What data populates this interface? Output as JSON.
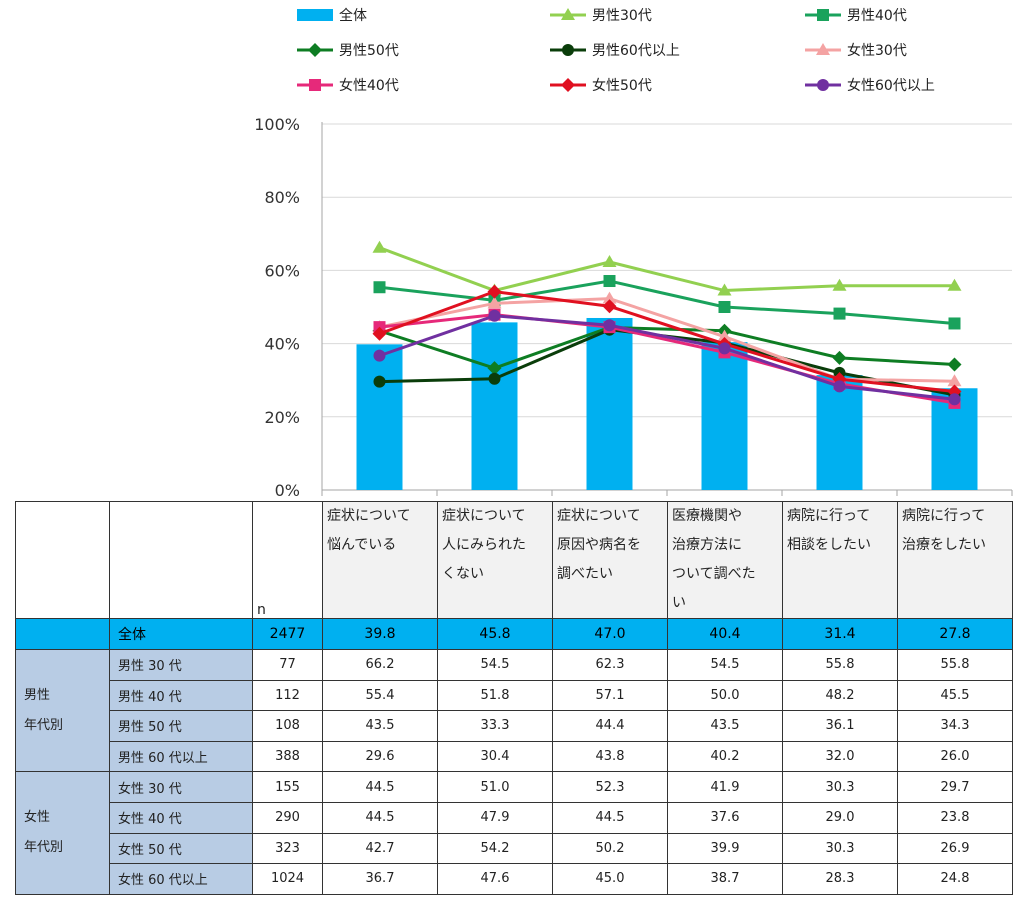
{
  "chart_data": {
    "type": "bar+line",
    "y_ticks": [
      "0%",
      "20%",
      "40%",
      "60%",
      "80%",
      "100%"
    ],
    "ylim": [
      0,
      100
    ],
    "categories": [
      "症状について悩んでいる",
      "症状について人にみられたくない",
      "症状について原因や病名を調べたい",
      "医療機関や治療方法について調べたい",
      "病院に行って相談をしたい",
      "病院に行って治療をしたい"
    ],
    "bar_series": {
      "name": "全体",
      "color": "#00b0f0",
      "values": [
        39.8,
        45.8,
        47.0,
        40.4,
        31.4,
        27.8
      ]
    },
    "line_series": [
      {
        "name": "男性30代",
        "color": "#92d050",
        "marker": "triangle",
        "values": [
          66.2,
          54.5,
          62.3,
          54.5,
          55.8,
          55.8
        ]
      },
      {
        "name": "男性40代",
        "color": "#1aa25c",
        "marker": "square",
        "values": [
          55.4,
          51.8,
          57.1,
          50.0,
          48.2,
          45.5
        ]
      },
      {
        "name": "男性50代",
        "color": "#0e7d23",
        "marker": "diamond",
        "values": [
          43.5,
          33.3,
          44.4,
          43.5,
          36.1,
          34.3
        ]
      },
      {
        "name": "男性60代以上",
        "color": "#0a3d0a",
        "marker": "circle",
        "values": [
          29.6,
          30.4,
          43.8,
          40.2,
          32.0,
          26.0
        ]
      },
      {
        "name": "女性30代",
        "color": "#f4a3a3",
        "marker": "triangle",
        "values": [
          44.5,
          51.0,
          52.3,
          41.9,
          30.3,
          29.7
        ]
      },
      {
        "name": "女性40代",
        "color": "#e6297a",
        "marker": "square",
        "values": [
          44.5,
          47.9,
          44.5,
          37.6,
          29.0,
          23.8
        ]
      },
      {
        "name": "女性50代",
        "color": "#e01020",
        "marker": "diamond",
        "values": [
          42.7,
          54.2,
          50.2,
          39.9,
          30.3,
          26.9
        ]
      },
      {
        "name": "女性60代以上",
        "color": "#7030a0",
        "marker": "circle",
        "values": [
          36.7,
          47.6,
          45.0,
          38.7,
          28.3,
          24.8
        ]
      }
    ]
  },
  "table": {
    "n_header": "n",
    "questions": [
      [
        "症状について",
        "悩んでいる"
      ],
      [
        "症状について",
        "人にみられた",
        "くない"
      ],
      [
        "症状について",
        "原因や病名を",
        "調べたい"
      ],
      [
        "医療機関や",
        "治療方法に",
        "ついて調べた",
        "い"
      ],
      [
        "病院に行って",
        "相談をしたい"
      ],
      [
        "病院に行って",
        "治療をしたい"
      ]
    ],
    "total": {
      "label": "全体",
      "n": "2477",
      "values": [
        "39.8",
        "45.8",
        "47.0",
        "40.4",
        "31.4",
        "27.8"
      ]
    },
    "groups": [
      {
        "label_lines": [
          "男性",
          "年代別"
        ],
        "rows": [
          {
            "label": "男性 30 代",
            "n": "77",
            "values": [
              "66.2",
              "54.5",
              "62.3",
              "54.5",
              "55.8",
              "55.8"
            ]
          },
          {
            "label": "男性 40 代",
            "n": "112",
            "values": [
              "55.4",
              "51.8",
              "57.1",
              "50.0",
              "48.2",
              "45.5"
            ]
          },
          {
            "label": "男性 50 代",
            "n": "108",
            "values": [
              "43.5",
              "33.3",
              "44.4",
              "43.5",
              "36.1",
              "34.3"
            ]
          },
          {
            "label": "男性 60 代以上",
            "n": "388",
            "values": [
              "29.6",
              "30.4",
              "43.8",
              "40.2",
              "32.0",
              "26.0"
            ]
          }
        ]
      },
      {
        "label_lines": [
          "女性",
          "年代別"
        ],
        "rows": [
          {
            "label": "女性 30 代",
            "n": "155",
            "values": [
              "44.5",
              "51.0",
              "52.3",
              "41.9",
              "30.3",
              "29.7"
            ]
          },
          {
            "label": "女性 40 代",
            "n": "290",
            "values": [
              "44.5",
              "47.9",
              "44.5",
              "37.6",
              "29.0",
              "23.8"
            ]
          },
          {
            "label": "女性 50 代",
            "n": "323",
            "values": [
              "42.7",
              "54.2",
              "50.2",
              "39.9",
              "30.3",
              "26.9"
            ]
          },
          {
            "label": "女性 60 代以上",
            "n": "1024",
            "values": [
              "36.7",
              "47.6",
              "45.0",
              "38.7",
              "28.3",
              "24.8"
            ]
          }
        ]
      }
    ]
  }
}
